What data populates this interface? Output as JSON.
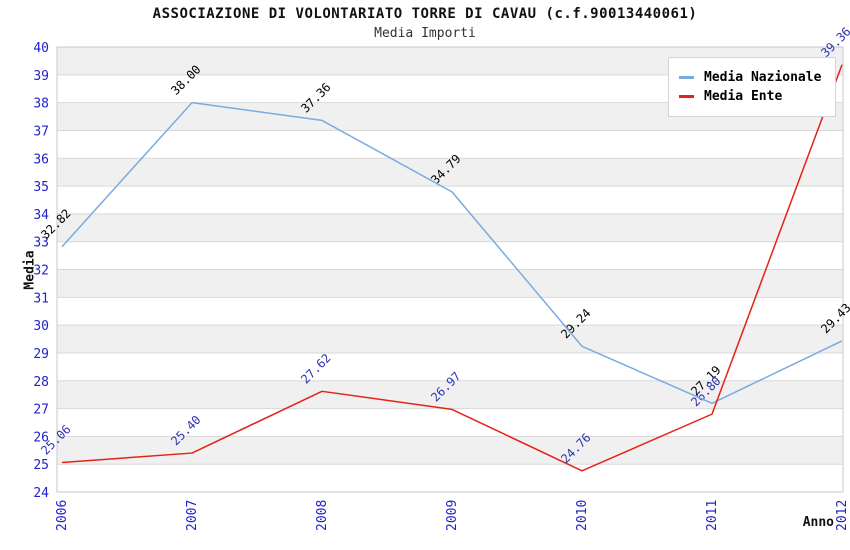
{
  "chart_data": {
    "type": "line",
    "title": "ASSOCIAZIONE DI VOLONTARIATO TORRE DI CAVAU (c.f.90013440061)",
    "subtitle": "Media Importi",
    "xlabel": "Anno",
    "ylabel": "Media",
    "ylim": [
      24,
      40
    ],
    "ytick_step": 1,
    "grid": "horizontal-bands",
    "legend_position": "top-right",
    "categories": [
      "2006",
      "2007",
      "2008",
      "2009",
      "2010",
      "2011",
      "2012"
    ],
    "series": [
      {
        "name": "Media Nazionale",
        "color": "#7aabdf",
        "label_color": "#000000",
        "values": [
          32.82,
          38.0,
          37.36,
          34.79,
          29.24,
          27.19,
          29.43
        ]
      },
      {
        "name": "Media Ente",
        "color": "#e42217",
        "label_color": "#2b35af",
        "values": [
          25.06,
          25.4,
          27.62,
          26.97,
          24.76,
          26.8,
          39.36
        ]
      }
    ],
    "colors": {
      "tick_label": "#2222cc",
      "grid": "#d9d9d9",
      "band": "#f0f0f0",
      "band_alt": "#ffffff",
      "plot_border": "#c9c9c9"
    }
  }
}
